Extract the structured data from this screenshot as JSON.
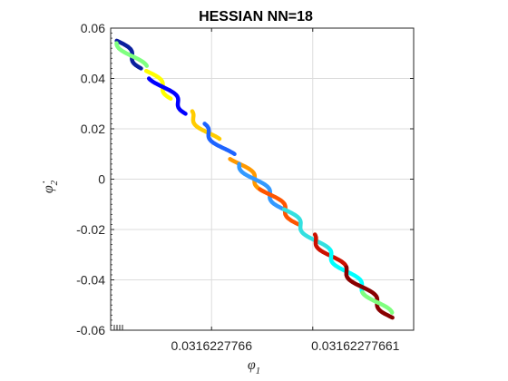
{
  "chart_data": {
    "type": "scatter",
    "title": "HESSIAN NN=18",
    "xlabel": "φ",
    "xlabel_sub": "1",
    "ylabel": "φ̇",
    "ylabel_sub": "2",
    "ylim": [
      -0.06,
      0.06
    ],
    "yticks": [
      0.06,
      0.04,
      0.02,
      0,
      -0.02,
      -0.04,
      -0.06
    ],
    "ytick_labels": [
      "0.06",
      "0.04",
      "0.02",
      "0",
      "-0.02",
      "-0.04",
      "-0.06"
    ],
    "x_tick_fraction": [
      0.333,
      0.667
    ],
    "xtick_labels": [
      "0.0316227766",
      "0.03162277661"
    ],
    "grid": true,
    "trajectory": {
      "y_start": 0.055,
      "y_end": -0.055,
      "x_start_frac": 0.02,
      "x_end_frac": 0.93,
      "wiggle_count": 9,
      "wiggle_amplitude_frac": 0.018
    },
    "colormap": [
      "#00007f",
      "#0000ff",
      "#007fff",
      "#00ffff",
      "#7fff7f",
      "#ffff00",
      "#ff7f00",
      "#ff0000",
      "#7f0000"
    ],
    "series": [
      {
        "color": "#0a1f9e",
        "y_range": [
          0.055,
          0.044
        ]
      },
      {
        "color": "#7fff7f",
        "y_range": [
          0.054,
          0.045
        ]
      },
      {
        "color": "#ffff00",
        "y_range": [
          0.043,
          0.032
        ]
      },
      {
        "color": "#0000ff",
        "y_range": [
          0.04,
          0.026
        ]
      },
      {
        "color": "#ffcc00",
        "y_range": [
          0.027,
          0.016
        ]
      },
      {
        "color": "#1e64ff",
        "y_range": [
          0.022,
          0.01
        ]
      },
      {
        "color": "#ff9900",
        "y_range": [
          0.008,
          -0.005
        ]
      },
      {
        "color": "#3399ff",
        "y_range": [
          0.006,
          -0.012
        ]
      },
      {
        "color": "#ff5500",
        "y_range": [
          -0.004,
          -0.018
        ]
      },
      {
        "color": "#33e0e0",
        "y_range": [
          -0.012,
          -0.03
        ]
      },
      {
        "color": "#cc1100",
        "y_range": [
          -0.022,
          -0.035
        ]
      },
      {
        "color": "#00ffff",
        "y_range": [
          -0.028,
          -0.046
        ]
      },
      {
        "color": "#880000",
        "y_range": [
          -0.035,
          -0.055
        ]
      },
      {
        "color": "#7fff7f",
        "y_range": [
          -0.045,
          -0.053
        ]
      }
    ]
  }
}
